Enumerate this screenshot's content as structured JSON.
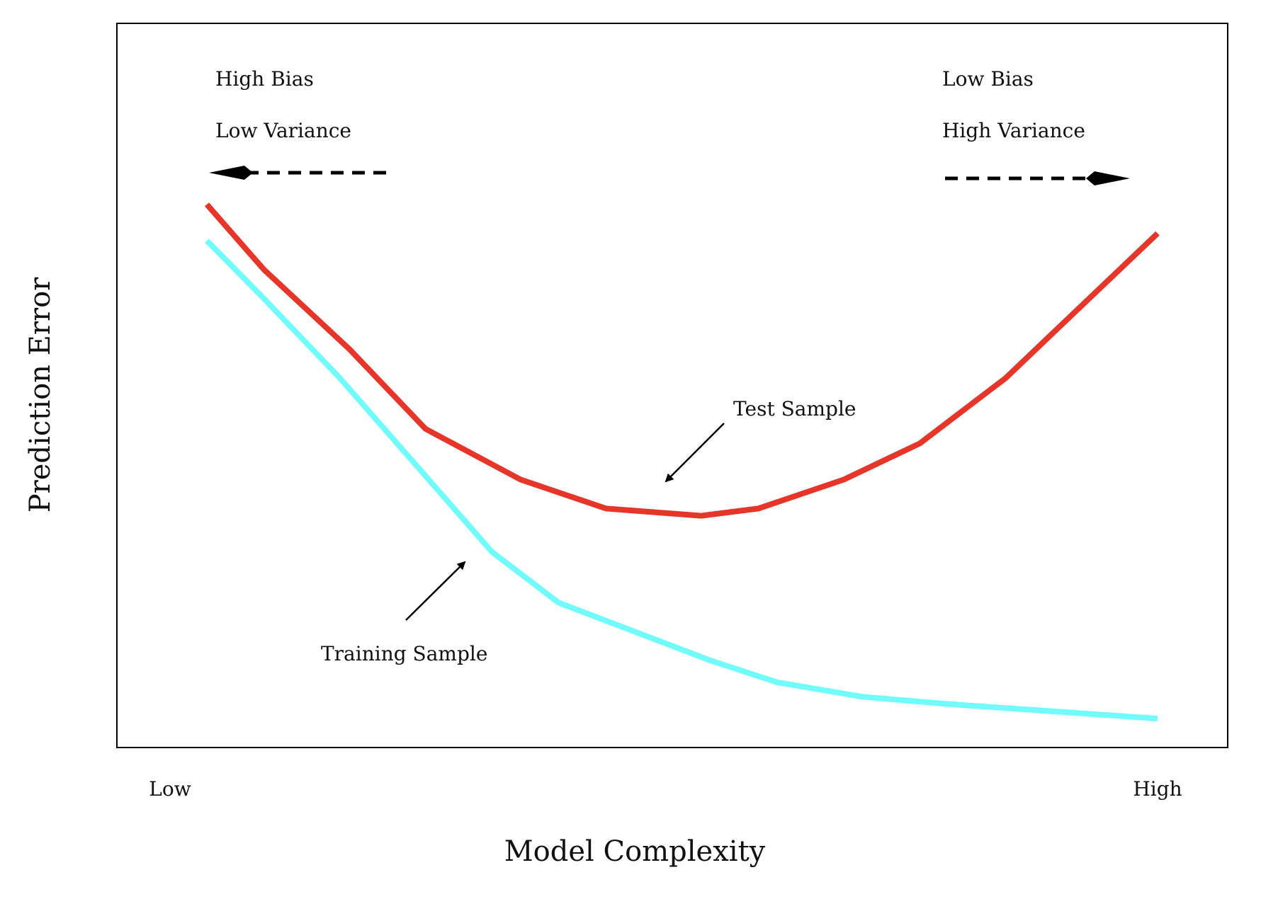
{
  "chart_data": {
    "type": "line",
    "title": "",
    "xlabel": "Model Complexity",
    "ylabel": "Prediction Error",
    "xlim": [
      0,
      1
    ],
    "ylim": [
      0,
      1
    ],
    "x_tick_labels": {
      "low": "Low",
      "high": "High"
    },
    "grid": false,
    "series": [
      {
        "name": "Test Sample",
        "color": "#e8352a",
        "x": [
          0.0,
          0.06,
          0.15,
          0.23,
          0.33,
          0.42,
          0.52,
          0.58,
          0.67,
          0.75,
          0.84,
          0.92,
          1.0
        ],
        "y": [
          0.75,
          0.66,
          0.55,
          0.44,
          0.37,
          0.33,
          0.32,
          0.33,
          0.37,
          0.42,
          0.51,
          0.61,
          0.71
        ]
      },
      {
        "name": "Training Sample",
        "color": "#72fbfb",
        "x": [
          0.0,
          0.06,
          0.14,
          0.22,
          0.3,
          0.37,
          0.45,
          0.53,
          0.6,
          0.69,
          0.78,
          0.89,
          1.0
        ],
        "y": [
          0.7,
          0.62,
          0.51,
          0.39,
          0.27,
          0.2,
          0.16,
          0.12,
          0.09,
          0.07,
          0.06,
          0.05,
          0.04
        ]
      }
    ],
    "annotations": {
      "left_top": "High Bias",
      "left_bottom": "Low Variance",
      "right_top": "Low Bias",
      "right_bottom": "High Variance",
      "test_label": "Test Sample",
      "train_label": "Training Sample"
    }
  }
}
